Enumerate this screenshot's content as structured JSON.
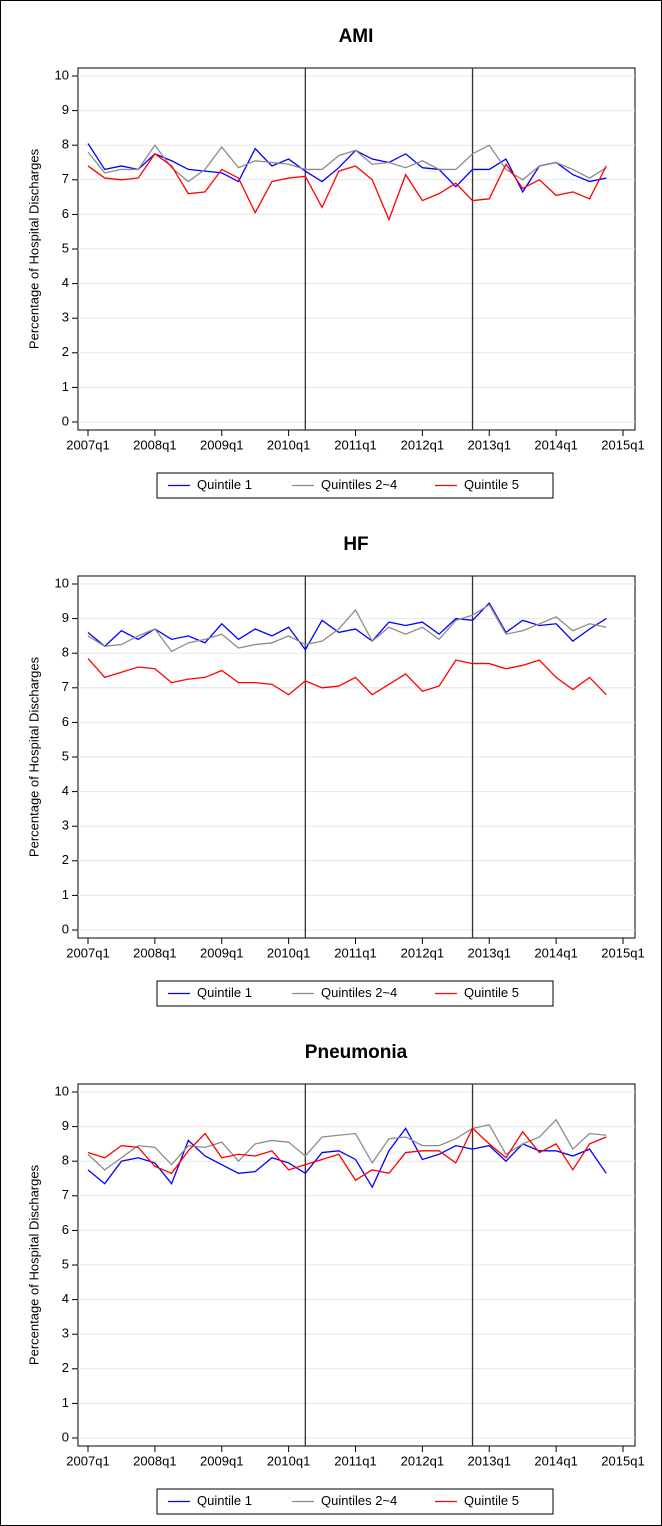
{
  "chart_data": [
    {
      "type": "line",
      "title": "AMI",
      "ylabel": "Percentage of Hospital Discharges",
      "x": [
        "2007q1",
        "2007q2",
        "2007q3",
        "2007q4",
        "2008q1",
        "2008q2",
        "2008q3",
        "2008q4",
        "2009q1",
        "2009q2",
        "2009q3",
        "2009q4",
        "2010q1",
        "2010q2",
        "2010q3",
        "2010q4",
        "2011q1",
        "2011q2",
        "2011q3",
        "2011q4",
        "2012q1",
        "2012q2",
        "2012q3",
        "2012q4",
        "2013q1",
        "2013q2",
        "2013q3",
        "2013q4",
        "2014q1",
        "2014q2",
        "2014q3",
        "2014q4"
      ],
      "xlim": [
        "2007q1",
        "2015q1"
      ],
      "xticks": [
        "2007q1",
        "2008q1",
        "2009q1",
        "2010q1",
        "2011q1",
        "2012q1",
        "2013q1",
        "2014q1",
        "2015q1"
      ],
      "ylim": [
        0,
        10
      ],
      "yticks": [
        0,
        1,
        2,
        3,
        4,
        5,
        6,
        7,
        8,
        9,
        10
      ],
      "grid": true,
      "legend": "bottom",
      "vlines": [
        "2010q2",
        "2012q4"
      ],
      "series": [
        {
          "name": "Quintile 1",
          "color": "#0000ff",
          "values": [
            8.05,
            7.3,
            7.4,
            7.3,
            7.75,
            7.55,
            7.3,
            7.25,
            7.2,
            6.95,
            7.9,
            7.4,
            7.6,
            7.25,
            6.95,
            7.35,
            7.85,
            7.6,
            7.5,
            7.75,
            7.35,
            7.3,
            6.8,
            7.3,
            7.3,
            7.6,
            6.65,
            7.4,
            7.5,
            7.15,
            6.95,
            7.05
          ]
        },
        {
          "name": "Quintiles 2~4",
          "color": "#8c8c8c",
          "values": [
            7.8,
            7.2,
            7.3,
            7.3,
            8.0,
            7.35,
            6.95,
            7.3,
            7.95,
            7.35,
            7.55,
            7.5,
            7.45,
            7.3,
            7.3,
            7.7,
            7.85,
            7.45,
            7.5,
            7.35,
            7.55,
            7.3,
            7.3,
            7.75,
            8.0,
            7.3,
            7.0,
            7.4,
            7.5,
            7.3,
            7.05,
            7.35
          ]
        },
        {
          "name": "Quintile 5",
          "color": "#ff0000",
          "values": [
            7.4,
            7.05,
            7.0,
            7.05,
            7.75,
            7.4,
            6.6,
            6.65,
            7.3,
            7.05,
            6.05,
            6.95,
            7.05,
            7.1,
            6.2,
            7.25,
            7.4,
            7.0,
            5.85,
            7.15,
            6.4,
            6.6,
            6.9,
            6.4,
            6.45,
            7.45,
            6.75,
            7.0,
            6.55,
            6.65,
            6.45,
            7.4
          ]
        }
      ]
    },
    {
      "type": "line",
      "title": "HF",
      "ylabel": "Percentage of Hospital Discharges",
      "x": [
        "2007q1",
        "2007q2",
        "2007q3",
        "2007q4",
        "2008q1",
        "2008q2",
        "2008q3",
        "2008q4",
        "2009q1",
        "2009q2",
        "2009q3",
        "2009q4",
        "2010q1",
        "2010q2",
        "2010q3",
        "2010q4",
        "2011q1",
        "2011q2",
        "2011q3",
        "2011q4",
        "2012q1",
        "2012q2",
        "2012q3",
        "2012q4",
        "2013q1",
        "2013q2",
        "2013q3",
        "2013q4",
        "2014q1",
        "2014q2",
        "2014q3",
        "2014q4"
      ],
      "xlim": [
        "2007q1",
        "2015q1"
      ],
      "xticks": [
        "2007q1",
        "2008q1",
        "2009q1",
        "2010q1",
        "2011q1",
        "2012q1",
        "2013q1",
        "2014q1",
        "2015q1"
      ],
      "ylim": [
        0,
        10
      ],
      "yticks": [
        0,
        1,
        2,
        3,
        4,
        5,
        6,
        7,
        8,
        9,
        10
      ],
      "grid": true,
      "legend": "bottom",
      "vlines": [
        "2010q2",
        "2012q4"
      ],
      "series": [
        {
          "name": "Quintile 1",
          "color": "#0000ff",
          "values": [
            8.6,
            8.2,
            8.65,
            8.4,
            8.7,
            8.4,
            8.5,
            8.3,
            8.85,
            8.4,
            8.7,
            8.5,
            8.75,
            8.1,
            8.95,
            8.6,
            8.7,
            8.35,
            8.9,
            8.8,
            8.9,
            8.55,
            9.0,
            8.95,
            9.45,
            8.6,
            8.95,
            8.8,
            8.85,
            8.35,
            8.7,
            9.0
          ]
        },
        {
          "name": "Quintiles 2~4",
          "color": "#8c8c8c",
          "values": [
            8.5,
            8.2,
            8.25,
            8.5,
            8.7,
            8.05,
            8.3,
            8.4,
            8.55,
            8.15,
            8.25,
            8.3,
            8.5,
            8.25,
            8.35,
            8.7,
            9.25,
            8.35,
            8.75,
            8.55,
            8.75,
            8.4,
            8.95,
            9.1,
            9.4,
            8.55,
            8.65,
            8.85,
            9.05,
            8.65,
            8.85,
            8.75
          ]
        },
        {
          "name": "Quintile 5",
          "color": "#ff0000",
          "values": [
            7.85,
            7.3,
            7.45,
            7.6,
            7.55,
            7.15,
            7.25,
            7.3,
            7.5,
            7.15,
            7.15,
            7.1,
            6.8,
            7.2,
            7.0,
            7.05,
            7.3,
            6.8,
            7.1,
            7.4,
            6.9,
            7.05,
            7.8,
            7.7,
            7.7,
            7.55,
            7.65,
            7.8,
            7.3,
            6.95,
            7.3,
            6.8
          ]
        }
      ]
    },
    {
      "type": "line",
      "title": "Pneumonia",
      "ylabel": "Percentage of Hospital Discharges",
      "x": [
        "2007q1",
        "2007q2",
        "2007q3",
        "2007q4",
        "2008q1",
        "2008q2",
        "2008q3",
        "2008q4",
        "2009q1",
        "2009q2",
        "2009q3",
        "2009q4",
        "2010q1",
        "2010q2",
        "2010q3",
        "2010q4",
        "2011q1",
        "2011q2",
        "2011q3",
        "2011q4",
        "2012q1",
        "2012q2",
        "2012q3",
        "2012q4",
        "2013q1",
        "2013q2",
        "2013q3",
        "2013q4",
        "2014q1",
        "2014q2",
        "2014q3",
        "2014q4"
      ],
      "xlim": [
        "2007q1",
        "2015q1"
      ],
      "xticks": [
        "2007q1",
        "2008q1",
        "2009q1",
        "2010q1",
        "2011q1",
        "2012q1",
        "2013q1",
        "2014q1",
        "2015q1"
      ],
      "ylim": [
        0,
        10
      ],
      "yticks": [
        0,
        1,
        2,
        3,
        4,
        5,
        6,
        7,
        8,
        9,
        10
      ],
      "grid": true,
      "legend": "bottom",
      "vlines": [
        "2010q2",
        "2012q4"
      ],
      "series": [
        {
          "name": "Quintile 1",
          "color": "#0000ff",
          "values": [
            7.75,
            7.35,
            8.0,
            8.1,
            7.95,
            7.35,
            8.6,
            8.15,
            7.9,
            7.65,
            7.7,
            8.1,
            7.95,
            7.65,
            8.25,
            8.3,
            8.05,
            7.25,
            8.3,
            8.95,
            8.05,
            8.2,
            8.45,
            8.35,
            8.45,
            8.0,
            8.5,
            8.3,
            8.3,
            8.15,
            8.35,
            7.65
          ]
        },
        {
          "name": "Quintiles 2~4",
          "color": "#8c8c8c",
          "values": [
            8.2,
            7.75,
            8.1,
            8.45,
            8.4,
            7.9,
            8.45,
            8.4,
            8.55,
            8.0,
            8.5,
            8.6,
            8.55,
            8.15,
            8.7,
            8.75,
            8.8,
            7.95,
            8.65,
            8.7,
            8.45,
            8.45,
            8.65,
            8.95,
            9.05,
            8.2,
            8.5,
            8.7,
            9.2,
            8.35,
            8.8,
            8.75
          ]
        },
        {
          "name": "Quintile 5",
          "color": "#ff0000",
          "values": [
            8.25,
            8.1,
            8.45,
            8.4,
            7.85,
            7.65,
            8.3,
            8.8,
            8.1,
            8.2,
            8.15,
            8.3,
            7.75,
            7.9,
            8.05,
            8.2,
            7.45,
            7.75,
            7.65,
            8.25,
            8.3,
            8.3,
            7.95,
            8.95,
            8.5,
            8.1,
            8.85,
            8.25,
            8.5,
            7.75,
            8.5,
            8.7
          ]
        }
      ]
    }
  ]
}
